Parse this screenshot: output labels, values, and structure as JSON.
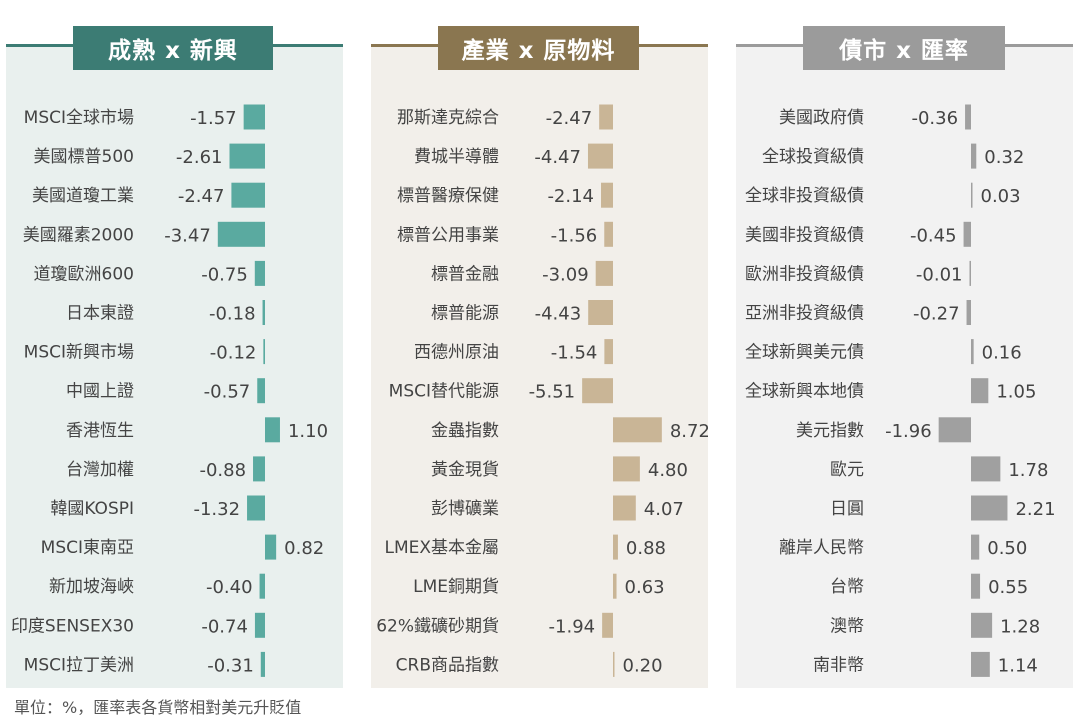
{
  "footnote": "單位：%，匯率表各貨幣相對美元升貶值",
  "chart_data": [
    {
      "type": "bar",
      "title": "成熟 x 新興",
      "color": "#5aaaa0",
      "header_color": "#3c7c74",
      "panel_bg": "#e9f0ee",
      "categories": [
        "MSCI全球市場",
        "美國標普500",
        "美國道瓊工業",
        "美國羅素2000",
        "道瓊歐洲600",
        "日本東證",
        "MSCI新興市場",
        "中國上證",
        "香港恆生",
        "台灣加權",
        "韓國KOSPI",
        "MSCI東南亞",
        "新加坡海峽",
        "印度SENSEX30",
        "MSCI拉丁美洲"
      ],
      "values": [
        -1.57,
        -2.61,
        -2.47,
        -3.47,
        -0.75,
        -0.18,
        -0.12,
        -0.57,
        1.1,
        -0.88,
        -1.32,
        0.82,
        -0.4,
        -0.74,
        -0.31
      ],
      "labels": [
        "-1.57",
        "-2.61",
        "-2.47",
        "-3.47",
        "-0.75",
        "-0.18",
        "-0.12",
        "-0.57",
        "1.10",
        "-0.88",
        "-1.32",
        "0.82",
        "-0.40",
        "-0.74",
        "-0.31"
      ]
    },
    {
      "type": "bar",
      "title": "產業 x 原物料",
      "color": "#c9b596",
      "header_color": "#8a7650",
      "panel_bg": "#f2efea",
      "categories": [
        "那斯達克綜合",
        "費城半導體",
        "標普醫療保健",
        "標普公用事業",
        "標普金融",
        "標普能源",
        "西德州原油",
        "MSCI替代能源",
        "金蟲指數",
        "黃金現貨",
        "彭博礦業",
        "LMEX基本金屬",
        "LME銅期貨",
        "62%鐵礦砂期貨",
        "CRB商品指數"
      ],
      "values": [
        -2.47,
        -4.47,
        -2.14,
        -1.56,
        -3.09,
        -4.43,
        -1.54,
        -5.51,
        8.72,
        4.8,
        4.07,
        0.88,
        0.63,
        -1.94,
        0.2
      ],
      "labels": [
        "-2.47",
        "-4.47",
        "-2.14",
        "-1.56",
        "-3.09",
        "-4.43",
        "-1.54",
        "-5.51",
        "8.72",
        "4.80",
        "4.07",
        "0.88",
        "0.63",
        "-1.94",
        "0.20"
      ]
    },
    {
      "type": "bar",
      "title": "債市 x 匯率",
      "color": "#a0a0a0",
      "header_color": "#9b9b9b",
      "panel_bg": "#f2f2f2",
      "categories": [
        "美國政府債",
        "全球投資級債",
        "全球非投資級債",
        "美國非投資級債",
        "歐洲非投資級債",
        "亞洲非投資級債",
        "全球新興美元債",
        "全球新興本地債",
        "美元指數",
        "歐元",
        "日圓",
        "離岸人民幣",
        "台幣",
        "澳幣",
        "南非幣"
      ],
      "values": [
        -0.36,
        0.32,
        0.03,
        -0.45,
        -0.01,
        -0.27,
        0.16,
        1.05,
        -1.96,
        1.78,
        2.21,
        0.5,
        0.55,
        1.28,
        1.14
      ],
      "labels": [
        "-0.36",
        "0.32",
        "0.03",
        "-0.45",
        "-0.01",
        "-0.27",
        "0.16",
        "1.05",
        "-1.96",
        "1.78",
        "2.21",
        "0.50",
        "0.55",
        "1.28",
        "1.14"
      ]
    }
  ]
}
